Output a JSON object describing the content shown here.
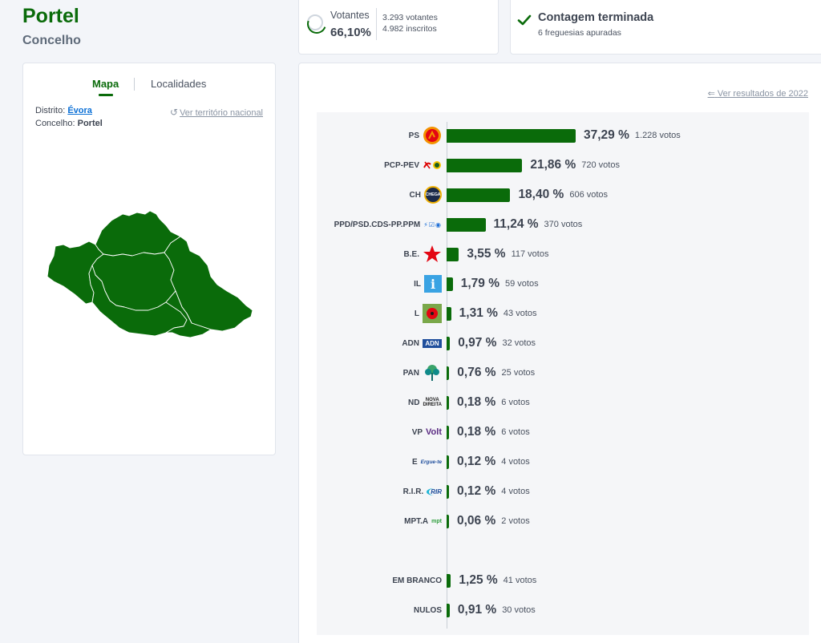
{
  "header": {
    "title": "Portel",
    "subtitle": "Concelho"
  },
  "turnout": {
    "label": "Votantes",
    "value": "66,10%",
    "voters": "3.293 votantes",
    "registered": "4.982 inscritos"
  },
  "count": {
    "title": "Contagem terminada",
    "subtitle": "6 freguesias apuradas"
  },
  "map_panel": {
    "tabs": [
      {
        "label": "Mapa",
        "active": true
      },
      {
        "label": "Localidades",
        "active": false
      }
    ],
    "district_label": "Distrito:",
    "district_value": "Évora",
    "municipality_label": "Concelho:",
    "municipality_value": "Portel",
    "national_link": "Ver território nacional",
    "map_color": "#0a6b0a"
  },
  "results": {
    "back_link": "Ver resultados de 2022",
    "bar_color": "#0a6b0a",
    "rows": [
      {
        "party": "PS",
        "logo": "ps-rose-logo",
        "percent": 37.29,
        "percent_text": "37,29 %",
        "votes_text": "1.228 votos"
      },
      {
        "party": "PCP-PEV",
        "logo": "pcp-pev-hammer-sickle-logo",
        "percent": 21.86,
        "percent_text": "21,86 %",
        "votes_text": "720 votos"
      },
      {
        "party": "CH",
        "logo": "ch-chega-logo",
        "percent": 18.4,
        "percent_text": "18,40 %",
        "votes_text": "606 votos"
      },
      {
        "party": "PPD/PSD.CDS-PP.PPM",
        "logo": "ad-coalition-logo",
        "percent": 11.24,
        "percent_text": "11,24 %",
        "votes_text": "370 votos"
      },
      {
        "party": "B.E.",
        "logo": "be-star-logo",
        "percent": 3.55,
        "percent_text": "3,55 %",
        "votes_text": "117 votos"
      },
      {
        "party": "IL",
        "logo": "il-liberal-logo",
        "percent": 1.79,
        "percent_text": "1,79 %",
        "votes_text": "59 votos"
      },
      {
        "party": "L",
        "logo": "livre-poppy-logo",
        "percent": 1.31,
        "percent_text": "1,31 %",
        "votes_text": "43 votos"
      },
      {
        "party": "ADN",
        "logo": "adn-logo",
        "percent": 0.97,
        "percent_text": "0,97 %",
        "votes_text": "32 votos"
      },
      {
        "party": "PAN",
        "logo": "pan-tree-logo",
        "percent": 0.76,
        "percent_text": "0,76 %",
        "votes_text": "25 votos"
      },
      {
        "party": "ND",
        "logo": "nova-direita-logo",
        "percent": 0.18,
        "percent_text": "0,18 %",
        "votes_text": "6 votos"
      },
      {
        "party": "VP",
        "logo": "volt-logo",
        "percent": 0.18,
        "percent_text": "0,18 %",
        "votes_text": "6 votos"
      },
      {
        "party": "E",
        "logo": "ergue-te-logo",
        "percent": 0.12,
        "percent_text": "0,12 %",
        "votes_text": "4 votos"
      },
      {
        "party": "R.I.R.",
        "logo": "rir-logo",
        "percent": 0.12,
        "percent_text": "0,12 %",
        "votes_text": "4 votos"
      },
      {
        "party": "MPT.A",
        "logo": "mpt-clover-logo",
        "percent": 0.06,
        "percent_text": "0,06 %",
        "votes_text": "2 votos"
      }
    ],
    "extra_rows": [
      {
        "party": "EM BRANCO",
        "percent": 1.25,
        "percent_text": "1,25 %",
        "votes_text": "41 votos"
      },
      {
        "party": "NULOS",
        "percent": 0.91,
        "percent_text": "0,91 %",
        "votes_text": "30 votos"
      }
    ]
  },
  "logo_texts": {
    "chega": "CHEGA",
    "ad": "⚡☑◉",
    "il": "i",
    "adn": "ADN",
    "nd_top": "NOVA",
    "nd_bottom": "DIREITA",
    "volt": "Volt",
    "ergue": "Ergue-te",
    "rir": "RIR",
    "mpt": "mpt"
  }
}
